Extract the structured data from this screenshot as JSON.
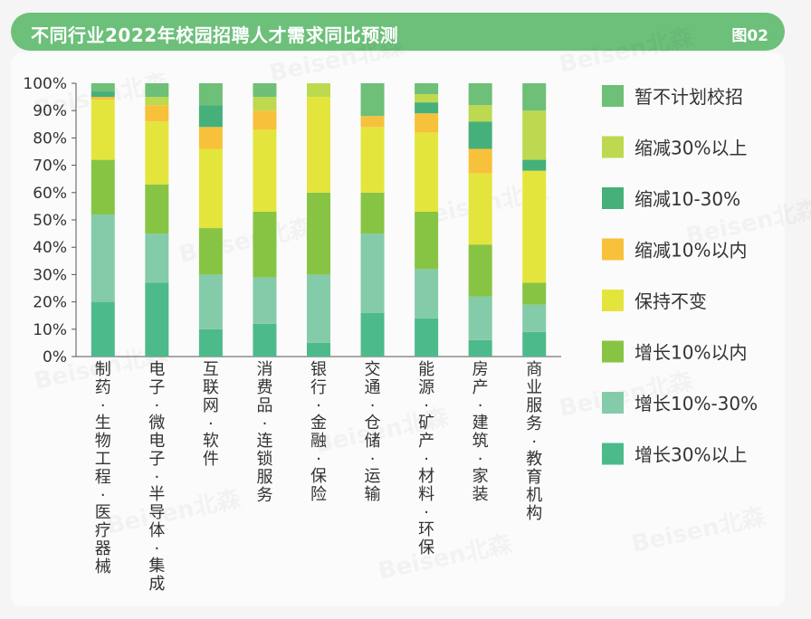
{
  "header": {
    "title": "不同行业2022年校园招聘人才需求同比预测",
    "tag": "图02"
  },
  "watermark": "Beisen北森",
  "chart_data": {
    "type": "bar",
    "stacked": true,
    "ylim": [
      0,
      100
    ],
    "yticks": [
      "0%",
      "10%",
      "20%",
      "30%",
      "40%",
      "50%",
      "60%",
      "70%",
      "80%",
      "90%",
      "100%"
    ],
    "categories": [
      [
        "制",
        "药",
        "·",
        "生",
        "物",
        "工",
        "程",
        "·",
        "医",
        "疗",
        "器",
        "械"
      ],
      [
        "电",
        "子",
        "·",
        "微",
        "电",
        "子",
        "·",
        "半",
        "导",
        "体",
        "·",
        "集",
        "成"
      ],
      [
        "互",
        "联",
        "网",
        "·",
        "软",
        "件"
      ],
      [
        "消",
        "费",
        "品",
        "·",
        "连",
        "锁",
        "服",
        "务"
      ],
      [
        "银",
        "行",
        "·",
        "金",
        "融",
        "·",
        "保",
        "险"
      ],
      [
        "交",
        "通",
        "·",
        "仓",
        "储",
        "·",
        "运",
        "输"
      ],
      [
        "能",
        "源",
        "·",
        "矿",
        "产",
        "·",
        "材",
        "料",
        "·",
        "环",
        "保"
      ],
      [
        "房",
        "产",
        "·",
        "建",
        "筑",
        "·",
        "家",
        "装"
      ],
      [
        "商",
        "业",
        "服",
        "务",
        "·",
        "教",
        "育",
        "机",
        "构"
      ]
    ],
    "series": [
      {
        "name": "增长30%以上",
        "color": "#4dba8c",
        "values": [
          20,
          27,
          10,
          12,
          5,
          16,
          14,
          6,
          9
        ]
      },
      {
        "name": "增长10%-30%",
        "color": "#84cba9",
        "values": [
          32,
          18,
          20,
          17,
          25,
          29,
          18,
          16,
          10
        ]
      },
      {
        "name": "增长10%以内",
        "color": "#88c444",
        "values": [
          20,
          18,
          17,
          24,
          30,
          15,
          21,
          19,
          8
        ]
      },
      {
        "name": "保持不变",
        "color": "#e4e53c",
        "values": [
          22,
          23,
          29,
          30,
          35,
          24,
          29,
          26,
          41
        ]
      },
      {
        "name": "缩减10%以内",
        "color": "#f7c13b",
        "values": [
          1,
          6,
          8,
          7,
          0,
          4,
          7,
          9,
          0
        ]
      },
      {
        "name": "缩减10-30%",
        "color": "#45b07a",
        "values": [
          2,
          0,
          8,
          0,
          0,
          0,
          4,
          10,
          4
        ]
      },
      {
        "name": "缩减30%以上",
        "color": "#bcd94f",
        "values": [
          0,
          3,
          0,
          5,
          5,
          0,
          3,
          6,
          18
        ]
      },
      {
        "name": "暂不计划校招",
        "color": "#6ebf78",
        "values": [
          3,
          5,
          8,
          5,
          0,
          12,
          4,
          8,
          10
        ]
      }
    ],
    "legend_order": [
      "暂不计划校招",
      "缩减30%以上",
      "缩减10-30%",
      "缩减10%以内",
      "保持不变",
      "增长10%以内",
      "增长10%-30%",
      "增长30%以上"
    ],
    "legend_position": "right",
    "grid": false
  }
}
